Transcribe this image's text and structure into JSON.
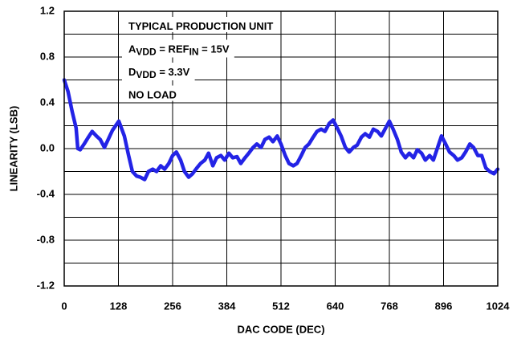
{
  "chart_data": {
    "type": "line",
    "xlabel": "DAC CODE (DEC)",
    "ylabel": "LINEARITY (LSB)",
    "annotations": [
      [
        {
          "text": "TYPICAL PRODUCTION UNIT"
        }
      ],
      [
        {
          "text": "A"
        },
        {
          "text": "VDD",
          "sub": true
        },
        {
          "text": " = REF"
        },
        {
          "text": "IN",
          "sub": true
        },
        {
          "text": " = 15V"
        }
      ],
      [
        {
          "text": "D"
        },
        {
          "text": "VDD",
          "sub": true
        },
        {
          "text": " = 3.3V"
        }
      ],
      [
        {
          "text": "NO LOAD"
        }
      ]
    ],
    "xlim": [
      0,
      1024
    ],
    "xticks": [
      0,
      128,
      256,
      384,
      512,
      640,
      768,
      896,
      1024
    ],
    "ylim": [
      -1.2,
      1.2
    ],
    "yticks": [
      1.2,
      0.8,
      0.4,
      {
        "value": 0,
        "label": "0.0"
      },
      -0.4,
      -0.8,
      -1.2
    ],
    "yminorticks": [
      1.0,
      0.6,
      0.2,
      -0.2,
      -0.6,
      -1.0
    ],
    "grid": true,
    "series": [
      {
        "color": "#2323e6",
        "x": [
          0,
          9,
          19,
          28,
          32,
          38,
          47,
          57,
          66,
          76,
          85,
          95,
          104,
          114,
          129,
          142,
          152,
          161,
          171,
          180,
          190,
          199,
          209,
          218,
          228,
          237,
          247,
          256,
          265,
          275,
          284,
          294,
          303,
          313,
          322,
          332,
          341,
          351,
          360,
          370,
          379,
          389,
          398,
          408,
          417,
          427,
          436,
          446,
          455,
          465,
          474,
          484,
          493,
          503,
          512,
          522,
          531,
          541,
          550,
          560,
          569,
          578,
          588,
          597,
          607,
          616,
          626,
          635,
          645,
          654,
          664,
          673,
          683,
          692,
          702,
          711,
          721,
          730,
          740,
          749,
          759,
          768,
          777,
          787,
          796,
          806,
          815,
          825,
          834,
          844,
          853,
          863,
          872,
          882,
          891,
          901,
          910,
          920,
          929,
          939,
          948,
          958,
          967,
          977,
          986,
          996,
          1005,
          1015,
          1024
        ],
        "values": [
          0.6,
          0.5,
          0.32,
          0.18,
          0.0,
          -0.01,
          0.04,
          0.1,
          0.15,
          0.11,
          0.08,
          0.01,
          0.08,
          0.16,
          0.24,
          0.11,
          -0.06,
          -0.2,
          -0.24,
          -0.25,
          -0.27,
          -0.2,
          -0.18,
          -0.2,
          -0.15,
          -0.18,
          -0.13,
          -0.06,
          -0.03,
          -0.1,
          -0.2,
          -0.25,
          -0.22,
          -0.17,
          -0.13,
          -0.1,
          -0.04,
          -0.15,
          -0.08,
          -0.06,
          -0.1,
          -0.04,
          -0.08,
          -0.07,
          -0.13,
          -0.08,
          -0.04,
          0.01,
          0.04,
          0.01,
          0.08,
          0.1,
          0.06,
          0.11,
          0.04,
          -0.06,
          -0.13,
          -0.15,
          -0.13,
          -0.06,
          0.01,
          0.04,
          0.1,
          0.15,
          0.17,
          0.15,
          0.22,
          0.25,
          0.18,
          0.11,
          0.01,
          -0.03,
          0.01,
          0.03,
          0.1,
          0.13,
          0.1,
          0.17,
          0.15,
          0.11,
          0.18,
          0.24,
          0.17,
          0.08,
          -0.03,
          -0.08,
          -0.04,
          -0.08,
          -0.01,
          -0.04,
          -0.1,
          -0.06,
          -0.1,
          0.01,
          0.11,
          0.04,
          -0.03,
          -0.06,
          -0.1,
          -0.08,
          -0.03,
          0.04,
          0.01,
          -0.06,
          -0.06,
          -0.17,
          -0.2,
          -0.22,
          -0.18
        ]
      }
    ]
  }
}
